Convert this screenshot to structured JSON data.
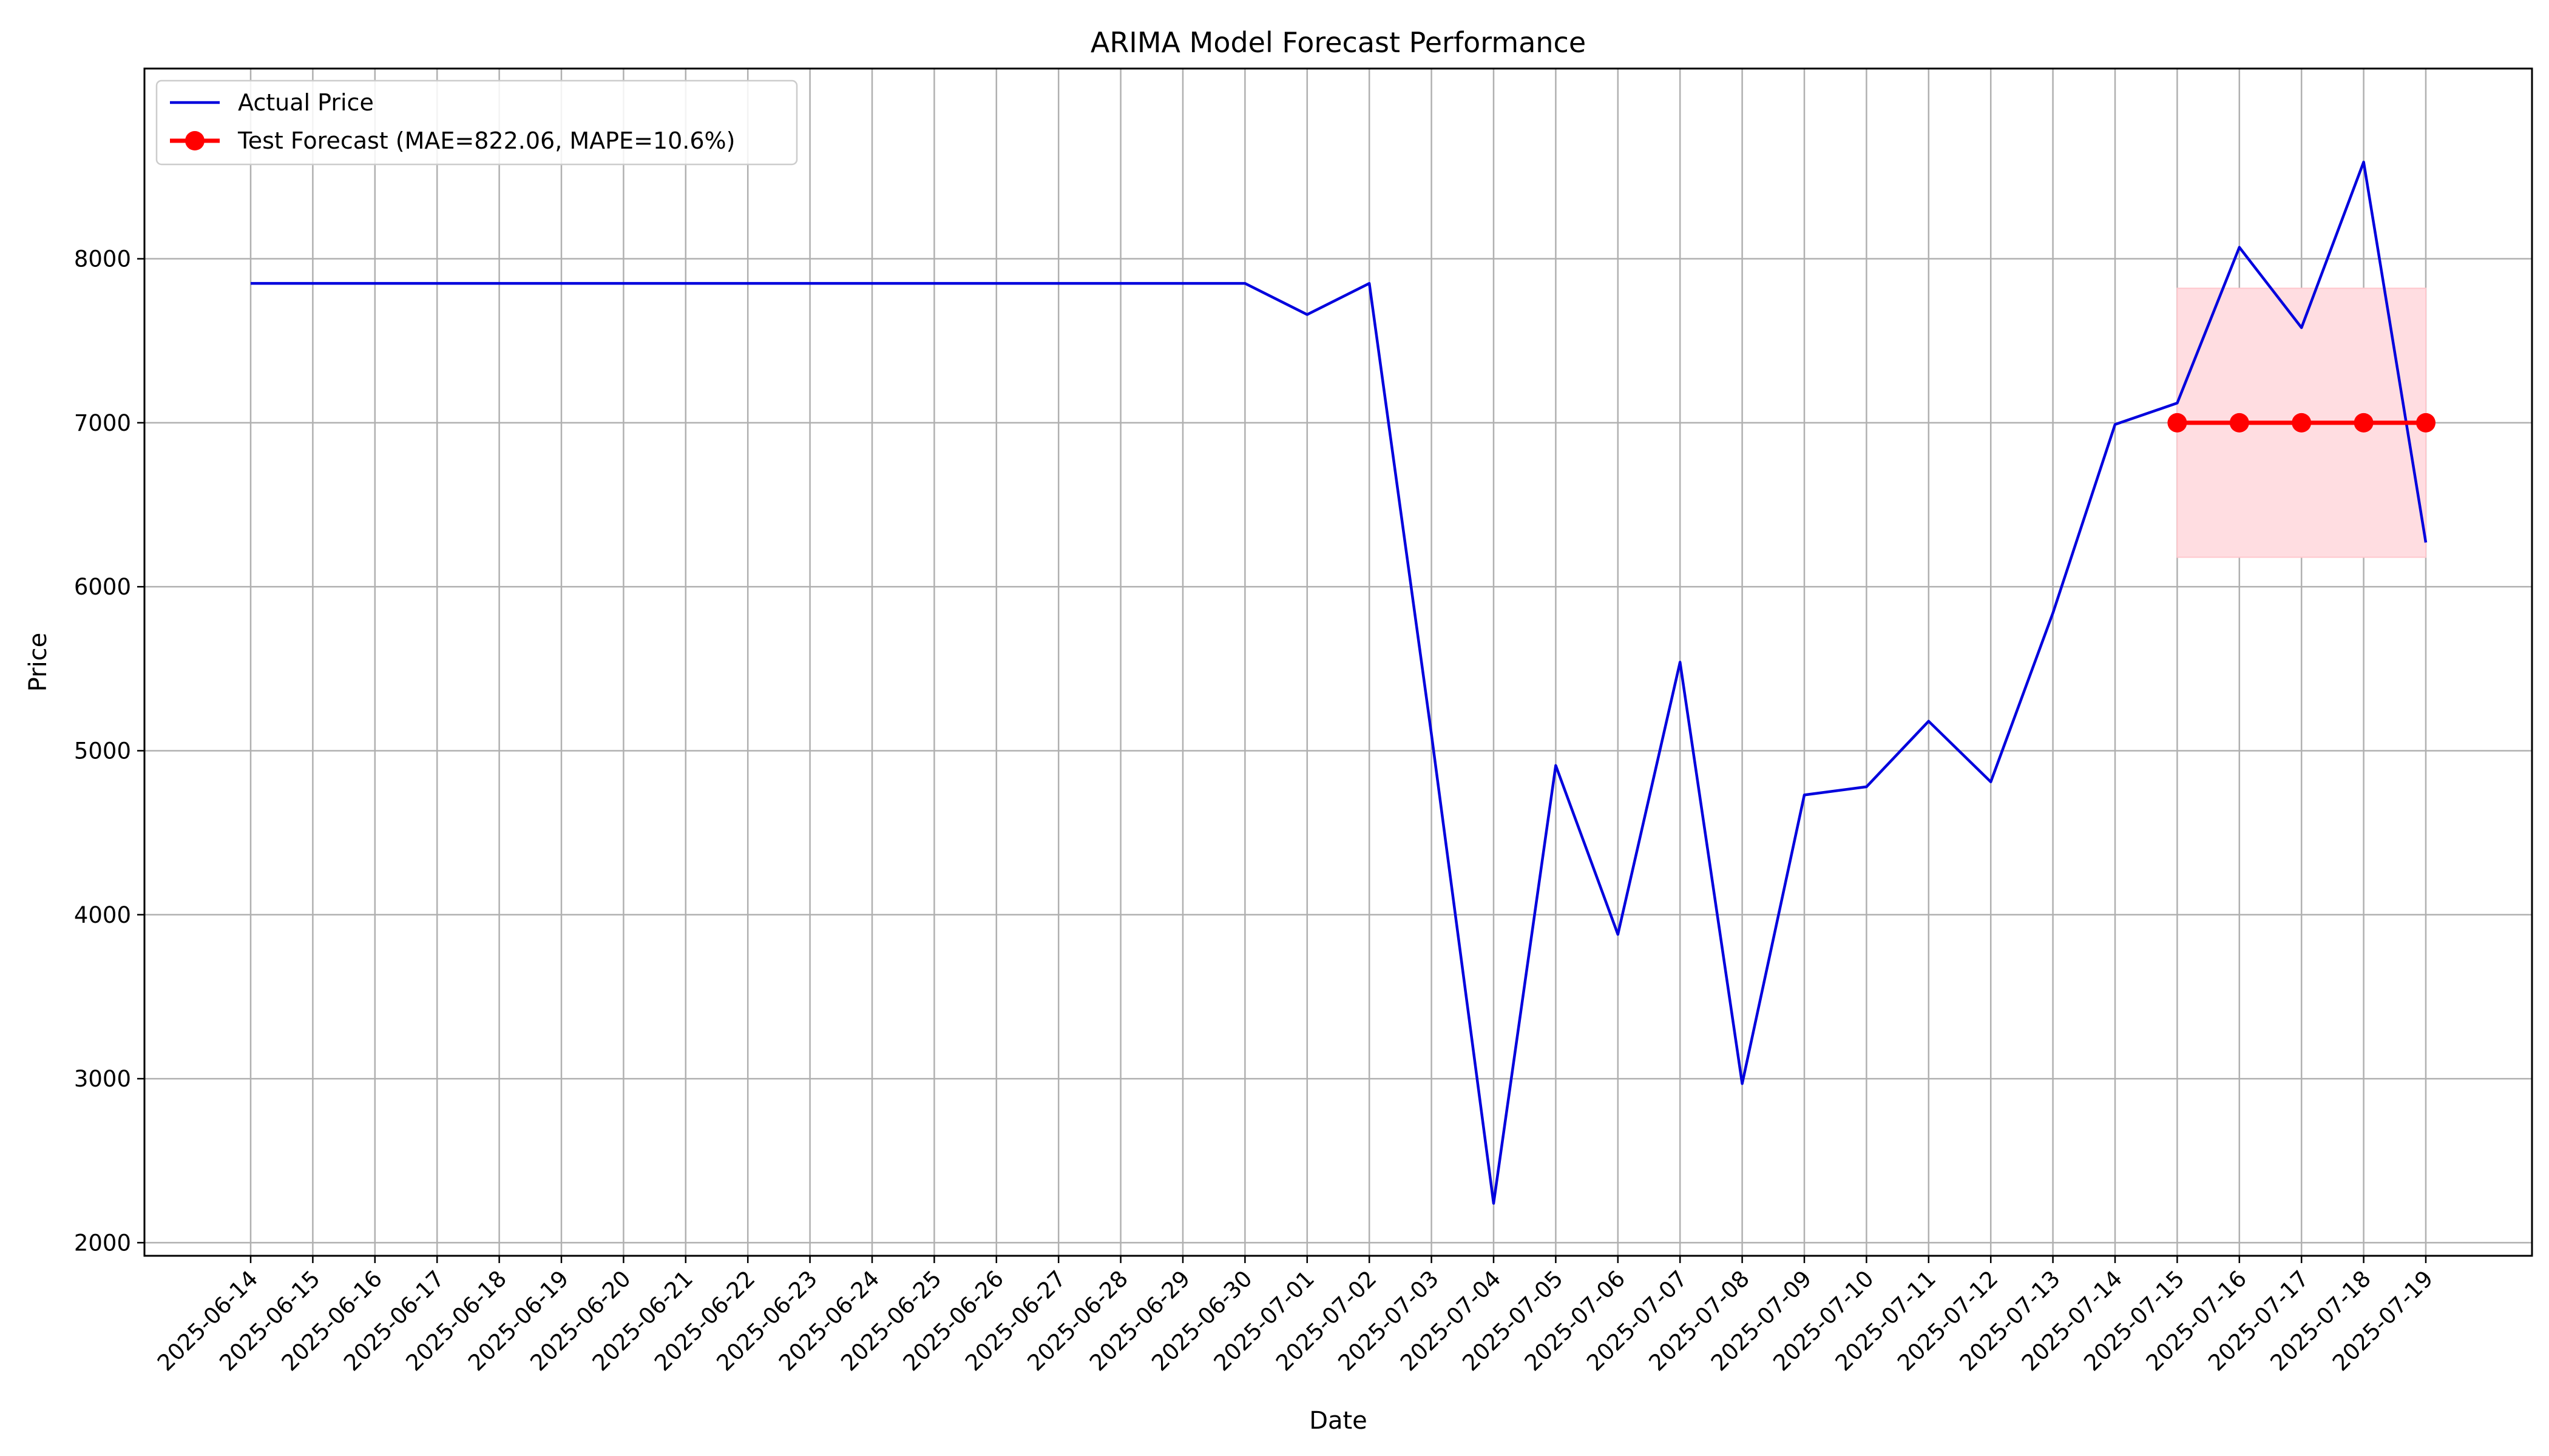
{
  "chart_data": {
    "type": "line",
    "title": "ARIMA Model Forecast Performance",
    "xlabel": "Date",
    "ylabel": "Price",
    "x": [
      "2025-06-14",
      "2025-06-15",
      "2025-06-16",
      "2025-06-17",
      "2025-06-18",
      "2025-06-19",
      "2025-06-20",
      "2025-06-21",
      "2025-06-22",
      "2025-06-23",
      "2025-06-24",
      "2025-06-25",
      "2025-06-26",
      "2025-06-27",
      "2025-06-28",
      "2025-06-29",
      "2025-06-30",
      "2025-07-01",
      "2025-07-02",
      "2025-07-03",
      "2025-07-04",
      "2025-07-05",
      "2025-07-06",
      "2025-07-07",
      "2025-07-08",
      "2025-07-09",
      "2025-07-10",
      "2025-07-11",
      "2025-07-12",
      "2025-07-13",
      "2025-07-14",
      "2025-07-15",
      "2025-07-16",
      "2025-07-17",
      "2025-07-18",
      "2025-07-19"
    ],
    "ylim": [
      1920,
      9160
    ],
    "yticks": [
      2000,
      3000,
      4000,
      5000,
      6000,
      7000,
      8000
    ],
    "grid": true,
    "legend_position": "top-left",
    "series": [
      {
        "name": "Actual Price",
        "color": "#0000dd",
        "marker": "none",
        "x": [
          "2025-06-14",
          "2025-06-15",
          "2025-06-16",
          "2025-06-17",
          "2025-06-18",
          "2025-06-19",
          "2025-06-20",
          "2025-06-21",
          "2025-06-22",
          "2025-06-23",
          "2025-06-24",
          "2025-06-25",
          "2025-06-26",
          "2025-06-27",
          "2025-06-28",
          "2025-06-29",
          "2025-06-30",
          "2025-07-01",
          "2025-07-02",
          "2025-07-03",
          "2025-07-04",
          "2025-07-05",
          "2025-07-06",
          "2025-07-07",
          "2025-07-08",
          "2025-07-09",
          "2025-07-10",
          "2025-07-11",
          "2025-07-12",
          "2025-07-13",
          "2025-07-14",
          "2025-07-15",
          "2025-07-16",
          "2025-07-17",
          "2025-07-18",
          "2025-07-19"
        ],
        "values": [
          7850,
          7850,
          7850,
          7850,
          7850,
          7850,
          7850,
          7850,
          7850,
          7850,
          7850,
          7850,
          7850,
          7850,
          7850,
          7850,
          7850,
          7660,
          7850,
          5100,
          2240,
          4910,
          3880,
          5540,
          2970,
          4730,
          4780,
          5180,
          4810,
          5840,
          6990,
          7120,
          8070,
          7580,
          8590,
          6270
        ]
      },
      {
        "name": "Test Forecast (MAE=822.06, MAPE=10.6%)",
        "color": "#ff0000",
        "marker": "circle",
        "x": [
          "2025-07-15",
          "2025-07-16",
          "2025-07-17",
          "2025-07-18",
          "2025-07-19"
        ],
        "values": [
          7000,
          7000,
          7000,
          7000,
          7000
        ]
      }
    ],
    "confidence_band": {
      "x_start": "2025-07-15",
      "x_end": "2025-07-19",
      "lower": 6180,
      "upper": 7820,
      "color": "#ffdde1"
    }
  }
}
